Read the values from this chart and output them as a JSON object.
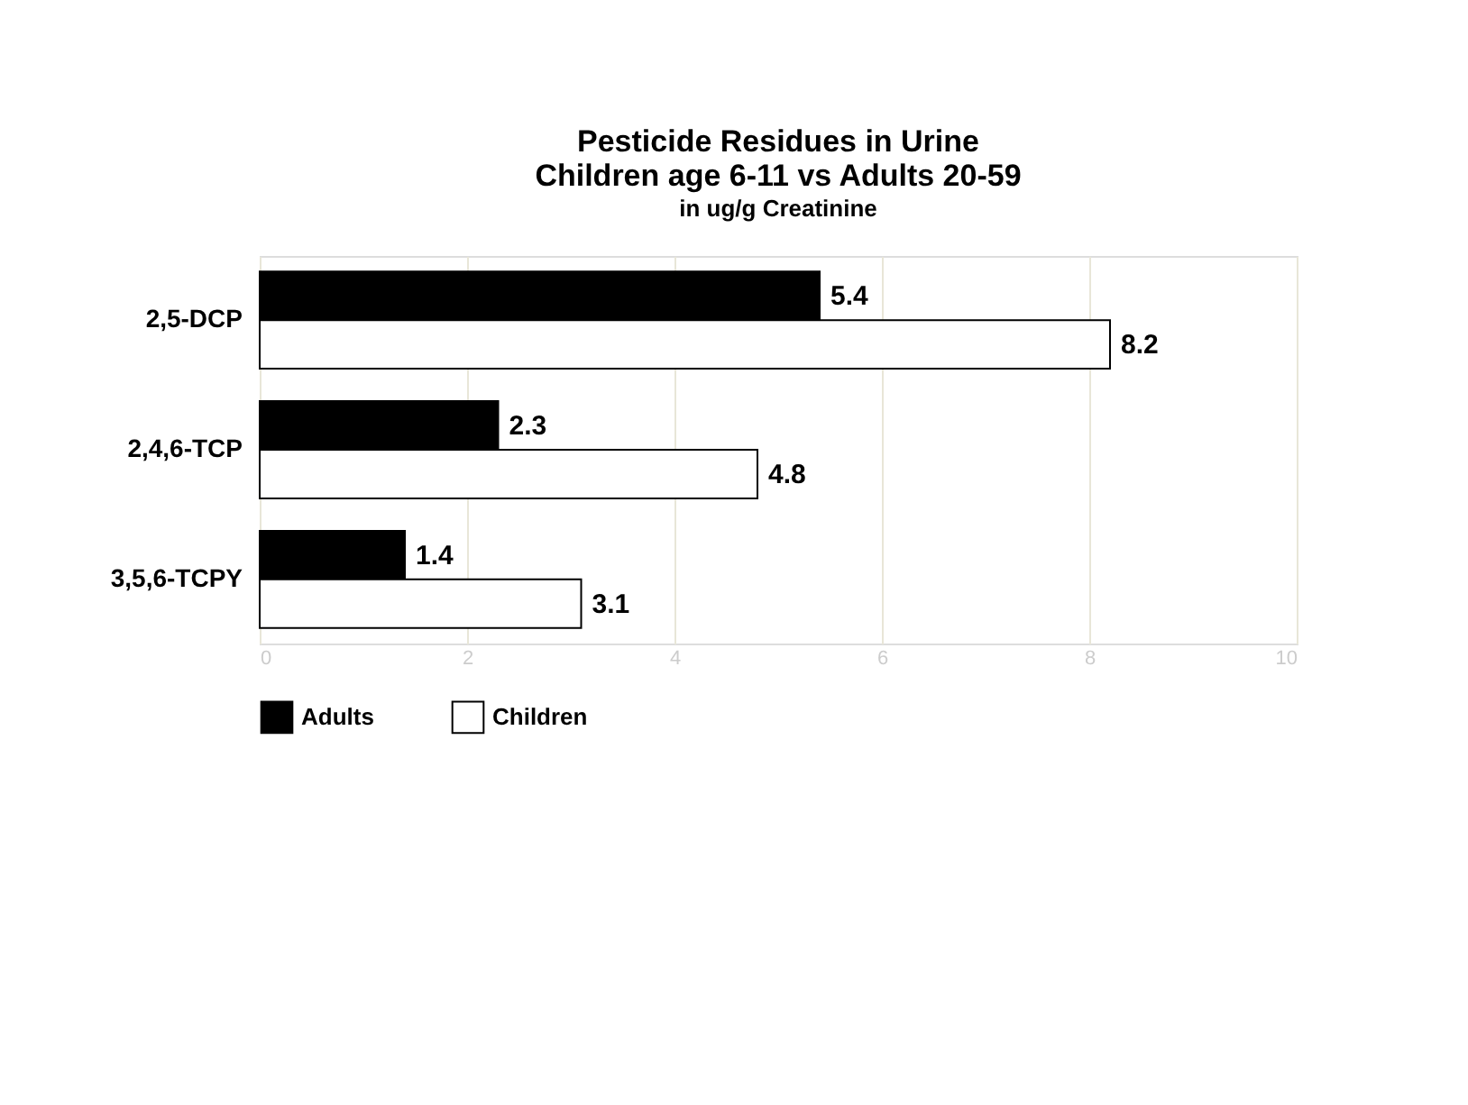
{
  "chart_data": {
    "type": "bar",
    "orientation": "horizontal",
    "title": [
      "Pesticide Residues in Urine",
      "Children age 6-11 vs Adults 20-59"
    ],
    "subtitle": "in ug/g Creatinine",
    "categories": [
      "2,5-DCP",
      "2,4,6-TCP",
      "3,5,6-TCPY"
    ],
    "series": [
      {
        "name": "Adults",
        "color": "#000000",
        "values": [
          5.4,
          2.3,
          1.4
        ]
      },
      {
        "name": "Children",
        "color": "#ffffff",
        "values": [
          8.2,
          4.8,
          3.1
        ]
      }
    ],
    "xlim": [
      0,
      10
    ],
    "xticks": [
      0,
      2,
      4,
      6,
      8,
      10
    ],
    "grid": "x",
    "legend": "bottom",
    "data_labels": true
  }
}
